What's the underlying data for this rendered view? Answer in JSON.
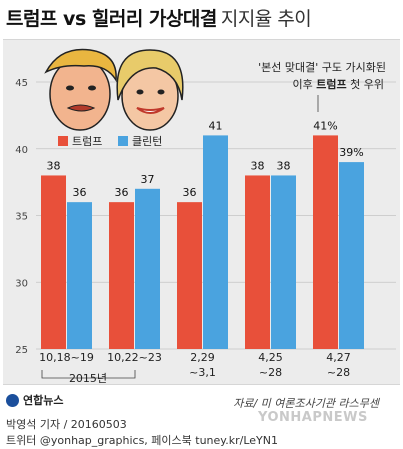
{
  "header": {
    "title": "트럼프 vs 힐러리 가상대결",
    "subtitle": "지지율 추이"
  },
  "annotation": {
    "line1": "'본선 맞대결' 구도 가시화된",
    "line2_before": "이후 ",
    "line2_bold": "트럼프",
    "line2_after": " 첫 우위"
  },
  "chart_data": {
    "type": "bar",
    "categories": [
      "10,18~19",
      "10,22~23",
      "2,29\n~3,1",
      "4,25\n~28",
      "4,27\n~28"
    ],
    "year_bracket_label": "2015년",
    "series": [
      {
        "name": "트럼프",
        "color": "#e8503a",
        "values": [
          38,
          36,
          36,
          38,
          41
        ]
      },
      {
        "name": "클린턴",
        "color": "#4aa3df",
        "values": [
          36,
          37,
          41,
          38,
          39
        ]
      }
    ],
    "value_labels": [
      [
        "38",
        "36",
        "36",
        "38",
        "41%"
      ],
      [
        "36",
        "37",
        "41",
        "38",
        "39%"
      ]
    ],
    "yticks": [
      25,
      30,
      35,
      40,
      45
    ],
    "ylim": [
      25,
      45
    ],
    "legend_position": "upper-left"
  },
  "footer": {
    "logo_text": "연합뉴스",
    "source": "자료/ 미 여론조사기관 라스무센",
    "byline": "박영석 기자 / 20160503",
    "contact": "트위터 @yonhap_graphics, 페이스북 tuney.kr/LeYN1",
    "watermark": "YONHAPNEWS"
  },
  "colors": {
    "trump": "#e8503a",
    "clinton": "#4aa3df",
    "panel": "#ececec"
  }
}
